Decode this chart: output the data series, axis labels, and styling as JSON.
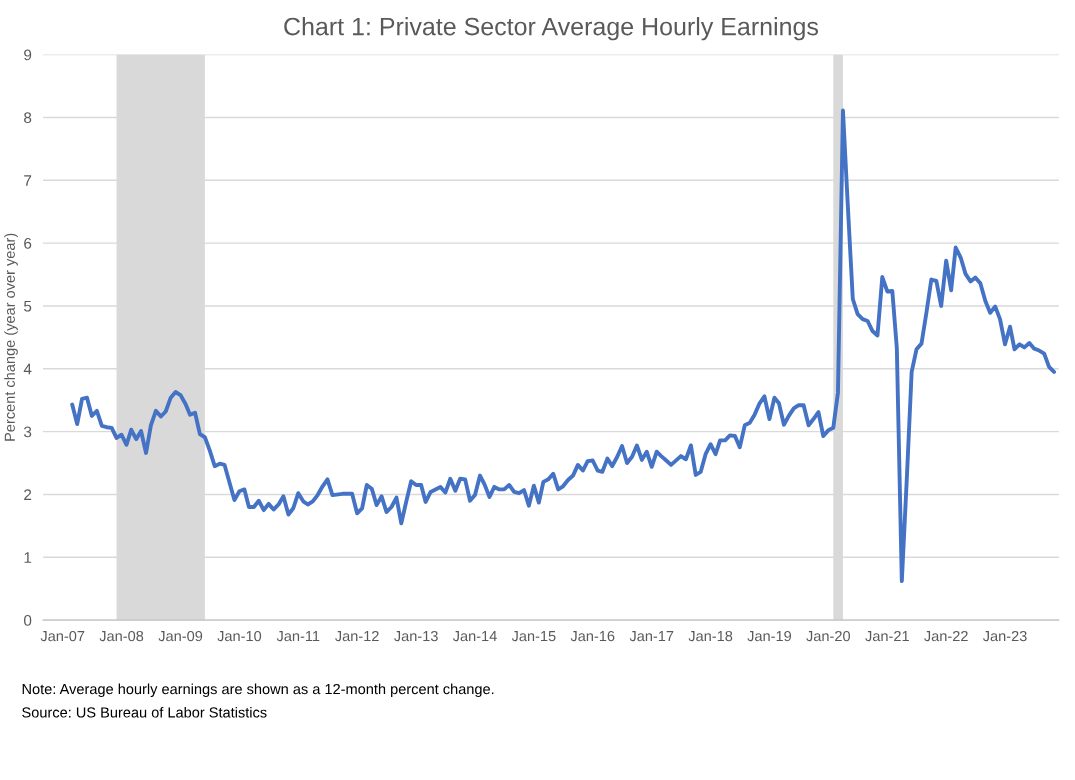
{
  "chart_data": {
    "type": "line",
    "title": "Chart 1: Private Sector Average Hourly Earnings",
    "ylabel": "Percent change (year over year)",
    "annotations": [
      "Note: Average hourly earnings are shown as a 12-month percent change.",
      "Source: US Bureau of Labor Statistics"
    ],
    "x": [
      "2007-03",
      "2007-04",
      "2007-05",
      "2007-06",
      "2007-07",
      "2007-08",
      "2007-09",
      "2007-10",
      "2007-11",
      "2007-12",
      "2008-01",
      "2008-02",
      "2008-03",
      "2008-04",
      "2008-05",
      "2008-06",
      "2008-07",
      "2008-08",
      "2008-09",
      "2008-10",
      "2008-11",
      "2008-12",
      "2009-01",
      "2009-02",
      "2009-03",
      "2009-04",
      "2009-05",
      "2009-06",
      "2009-07",
      "2009-08",
      "2009-09",
      "2009-10",
      "2009-12",
      "2010-01",
      "2010-02",
      "2010-03",
      "2010-04",
      "2010-05",
      "2010-06",
      "2010-07",
      "2010-08",
      "2010-09",
      "2010-10",
      "2010-11",
      "2010-12",
      "2011-01",
      "2011-02",
      "2011-03",
      "2011-04",
      "2011-05",
      "2011-06",
      "2011-07",
      "2011-08",
      "2011-10",
      "2011-12",
      "2012-01",
      "2012-02",
      "2012-03",
      "2012-04",
      "2012-05",
      "2012-06",
      "2012-07",
      "2012-08",
      "2012-09",
      "2012-10",
      "2012-11",
      "2012-12",
      "2013-01",
      "2013-02",
      "2013-03",
      "2013-04",
      "2013-05",
      "2013-06",
      "2013-07",
      "2013-08",
      "2013-09",
      "2013-10",
      "2013-11",
      "2013-12",
      "2014-01",
      "2014-02",
      "2014-03",
      "2014-04",
      "2014-05",
      "2014-06",
      "2014-07",
      "2014-08",
      "2014-09",
      "2014-10",
      "2014-11",
      "2014-12",
      "2015-01",
      "2015-02",
      "2015-03",
      "2015-04",
      "2015-05",
      "2015-06",
      "2015-07",
      "2015-08",
      "2015-09",
      "2015-10",
      "2015-11",
      "2015-12",
      "2016-01",
      "2016-02",
      "2016-03",
      "2016-04",
      "2016-05",
      "2016-06",
      "2016-07",
      "2016-08",
      "2016-09",
      "2016-10",
      "2016-11",
      "2016-12",
      "2017-01",
      "2017-02",
      "2017-03",
      "2017-04",
      "2017-05",
      "2017-07",
      "2017-08",
      "2017-09",
      "2017-10",
      "2017-11",
      "2017-12",
      "2018-01",
      "2018-02",
      "2018-03",
      "2018-04",
      "2018-05",
      "2018-06",
      "2018-07",
      "2018-08",
      "2018-09",
      "2018-10",
      "2018-11",
      "2018-12",
      "2019-01",
      "2019-02",
      "2019-03",
      "2019-04",
      "2019-05",
      "2019-06",
      "2019-07",
      "2019-08",
      "2019-09",
      "2019-10",
      "2019-11",
      "2019-12",
      "2020-01",
      "2020-02",
      "2020-03",
      "2020-04",
      "2020-05",
      "2020-06",
      "2020-07",
      "2020-08",
      "2020-09",
      "2020-10",
      "2020-11",
      "2020-12",
      "2021-01",
      "2021-02",
      "2021-03",
      "2021-04",
      "2021-05",
      "2021-06",
      "2021-07",
      "2021-08",
      "2021-09",
      "2021-10",
      "2021-11",
      "2021-12",
      "2022-01",
      "2022-02",
      "2022-03",
      "2022-04",
      "2022-05",
      "2022-06",
      "2022-07",
      "2022-08",
      "2022-09",
      "2022-10",
      "2022-11",
      "2022-12",
      "2023-01",
      "2023-02",
      "2023-03",
      "2023-04",
      "2023-05",
      "2023-06",
      "2023-07",
      "2023-08",
      "2023-09",
      "2023-10",
      "2023-11"
    ],
    "series": [
      {
        "color": "#4472c4",
        "values": [
          3.43,
          3.12,
          3.52,
          3.54,
          3.25,
          3.33,
          3.09,
          3.07,
          3.06,
          2.9,
          2.95,
          2.79,
          3.03,
          2.88,
          3.01,
          2.66,
          3.1,
          3.33,
          3.24,
          3.32,
          3.54,
          3.63,
          3.58,
          3.44,
          3.27,
          3.3,
          2.96,
          2.91,
          2.7,
          2.45,
          2.49,
          2.47,
          1.91,
          2.05,
          2.08,
          1.8,
          1.8,
          1.9,
          1.75,
          1.85,
          1.76,
          1.84,
          1.97,
          1.68,
          1.78,
          2.02,
          1.89,
          1.84,
          1.89,
          1.99,
          2.13,
          2.24,
          1.99,
          2.01,
          2.01,
          1.7,
          1.78,
          2.15,
          2.09,
          1.83,
          1.97,
          1.72,
          1.8,
          1.95,
          1.54,
          1.89,
          2.21,
          2.15,
          2.15,
          1.88,
          2.04,
          2.08,
          2.12,
          2.03,
          2.25,
          2.06,
          2.25,
          2.24,
          1.9,
          1.99,
          2.3,
          2.16,
          1.96,
          2.12,
          2.08,
          2.08,
          2.15,
          2.04,
          2.02,
          2.07,
          1.82,
          2.14,
          1.87,
          2.2,
          2.24,
          2.33,
          2.08,
          2.13,
          2.23,
          2.3,
          2.47,
          2.38,
          2.53,
          2.54,
          2.38,
          2.36,
          2.57,
          2.45,
          2.6,
          2.77,
          2.5,
          2.6,
          2.78,
          2.55,
          2.68,
          2.44,
          2.68,
          2.61,
          2.54,
          2.47,
          2.61,
          2.56,
          2.78,
          2.31,
          2.36,
          2.64,
          2.8,
          2.64,
          2.86,
          2.86,
          2.94,
          2.93,
          2.75,
          3.1,
          3.14,
          3.27,
          3.45,
          3.56,
          3.2,
          3.54,
          3.45,
          3.11,
          3.25,
          3.37,
          3.42,
          3.42,
          3.1,
          3.2,
          3.31,
          2.93,
          3.02,
          3.06,
          3.62,
          8.11,
          6.6,
          5.11,
          4.87,
          4.79,
          4.76,
          4.6,
          4.53,
          5.46,
          5.23,
          5.24,
          4.33,
          0.62,
          2.2,
          3.95,
          4.31,
          4.4,
          4.9,
          5.42,
          5.4,
          5.0,
          5.72,
          5.25,
          5.93,
          5.77,
          5.51,
          5.39,
          5.45,
          5.36,
          5.08,
          4.89,
          4.99,
          4.79,
          4.39,
          4.67,
          4.31,
          4.39,
          4.34,
          4.41,
          4.32,
          4.29,
          4.24,
          4.03,
          3.95
        ]
      }
    ],
    "xlim": [
      "2006-09",
      "2023-12"
    ],
    "xticks": [
      {
        "value": "2007-01",
        "label": "Jan-07"
      },
      {
        "value": "2008-01",
        "label": "Jan-08"
      },
      {
        "value": "2009-01",
        "label": "Jan-09"
      },
      {
        "value": "2010-01",
        "label": "Jan-10"
      },
      {
        "value": "2011-01",
        "label": "Jan-11"
      },
      {
        "value": "2012-01",
        "label": "Jan-12"
      },
      {
        "value": "2013-01",
        "label": "Jan-13"
      },
      {
        "value": "2014-01",
        "label": "Jan-14"
      },
      {
        "value": "2015-01",
        "label": "Jan-15"
      },
      {
        "value": "2016-01",
        "label": "Jan-16"
      },
      {
        "value": "2017-01",
        "label": "Jan-17"
      },
      {
        "value": "2018-01",
        "label": "Jan-18"
      },
      {
        "value": "2019-01",
        "label": "Jan-19"
      },
      {
        "value": "2020-01",
        "label": "Jan-20"
      },
      {
        "value": "2021-01",
        "label": "Jan-21"
      },
      {
        "value": "2022-01",
        "label": "Jan-22"
      },
      {
        "value": "2023-01",
        "label": "Jan-23"
      }
    ],
    "ylim": [
      0,
      9
    ],
    "yticks": [
      0,
      1,
      2,
      3,
      4,
      5,
      6,
      7,
      8,
      9
    ],
    "grid": "y",
    "bands": [
      {
        "axis": "x",
        "from": "2007-12",
        "to": "2009-06",
        "color": "#d9d9d9"
      },
      {
        "axis": "x",
        "from": "2020-02",
        "to": "2020-04",
        "color": "#d9d9d9"
      }
    ]
  }
}
